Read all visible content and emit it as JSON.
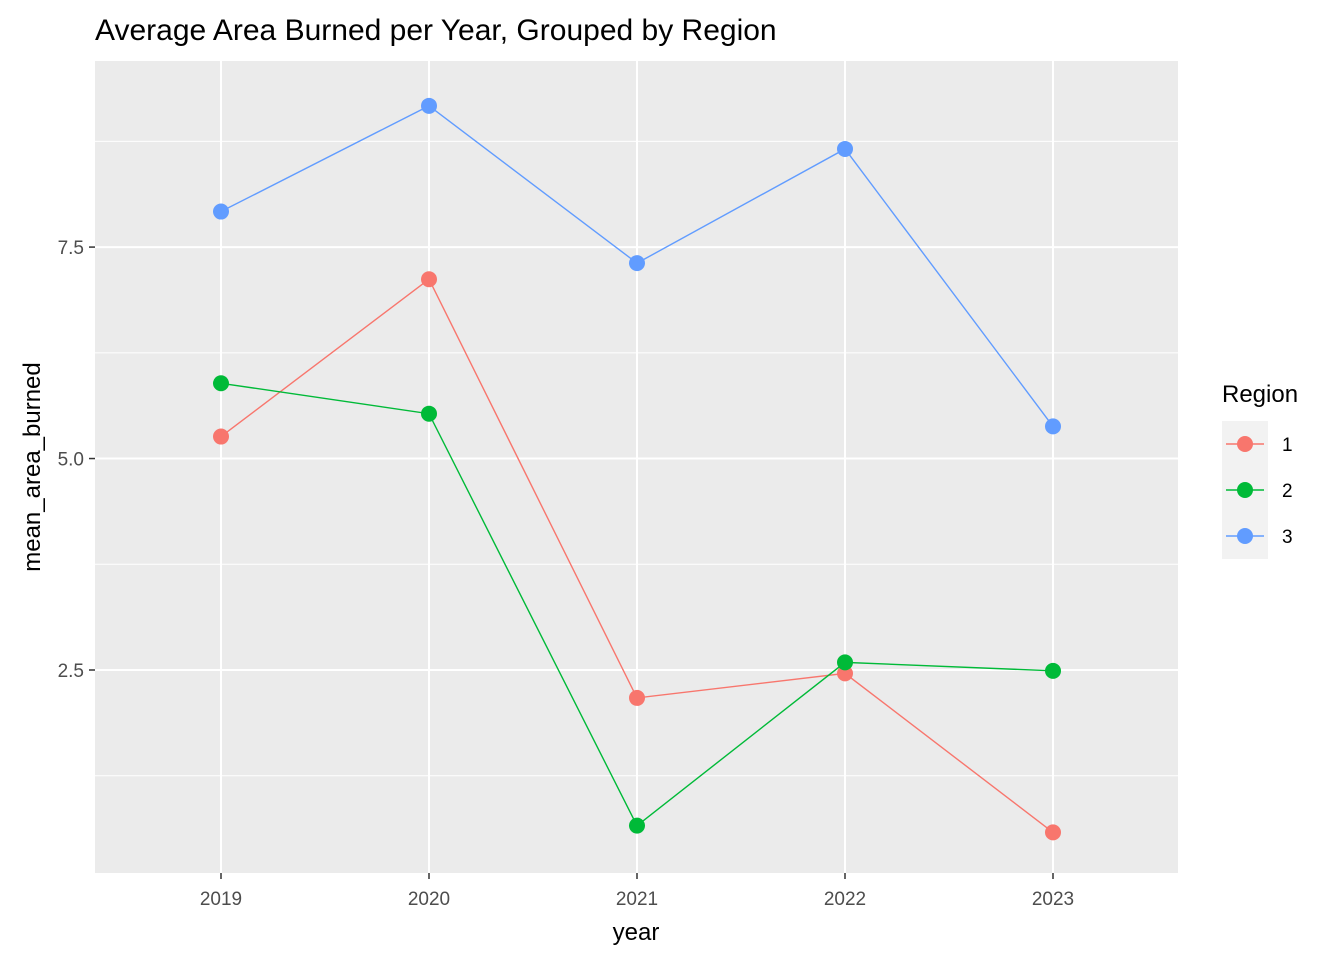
{
  "chart_data": {
    "type": "line",
    "title": "Average Area Burned per Year, Grouped by Region",
    "xlabel": "year",
    "ylabel": "mean_area_burned",
    "x": [
      2019,
      2020,
      2021,
      2022,
      2023
    ],
    "x_tick_labels": [
      "2019",
      "2020",
      "2021",
      "2022",
      "2023"
    ],
    "y_ticks": [
      2.5,
      5.0,
      7.5
    ],
    "y_tick_labels": [
      "2.5",
      "5.0",
      "7.5"
    ],
    "ylim": [
      0.1,
      9.7
    ],
    "grid": true,
    "legend": {
      "title": "Region",
      "position": "right"
    },
    "series": [
      {
        "name": "1",
        "color": "#F8766D",
        "values": [
          5.26,
          7.12,
          2.17,
          2.46,
          0.58
        ]
      },
      {
        "name": "2",
        "color": "#00BA38",
        "values": [
          5.89,
          5.53,
          0.66,
          2.59,
          2.49
        ]
      },
      {
        "name": "3",
        "color": "#619CFF",
        "values": [
          7.92,
          9.17,
          7.31,
          8.66,
          5.38
        ]
      }
    ]
  }
}
